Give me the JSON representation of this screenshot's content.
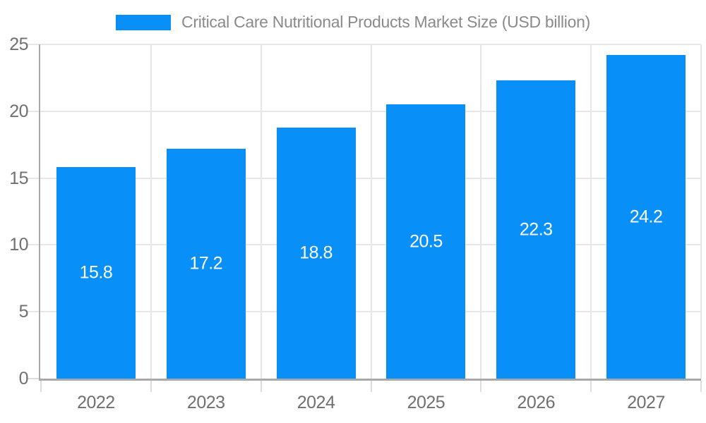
{
  "chart_data": {
    "type": "bar",
    "title": "Critical Care Nutritional Products Market Size (USD billion)",
    "categories": [
      "2022",
      "2023",
      "2024",
      "2025",
      "2026",
      "2027"
    ],
    "series": [
      {
        "name": "Critical Care Nutritional Products Market Size (USD billion)",
        "values": [
          15.8,
          17.2,
          18.8,
          20.5,
          22.3,
          24.2
        ],
        "value_labels": [
          "15.8",
          "17.2",
          "18.8",
          "20.5",
          "22.3",
          "24.2"
        ],
        "color": "#0990f8"
      }
    ],
    "xlabel": "",
    "ylabel": "",
    "ylim": [
      0,
      25
    ],
    "y_ticks": [
      0,
      5,
      10,
      15,
      20,
      25
    ],
    "grid": {
      "horizontal": true,
      "vertical": true
    },
    "legend": {
      "position": "top",
      "label": "Critical Care Nutritional Products Market Size (USD billion)",
      "swatch_color": "#0990f8"
    },
    "colors": {
      "bar": "#0990f8",
      "background": "#ffffff",
      "grid": "#e7e7e7",
      "axis": "#a8a8a8",
      "tick_text": "#707070",
      "legend_text": "#8a8a8a",
      "value_label": "#ffffff"
    }
  }
}
